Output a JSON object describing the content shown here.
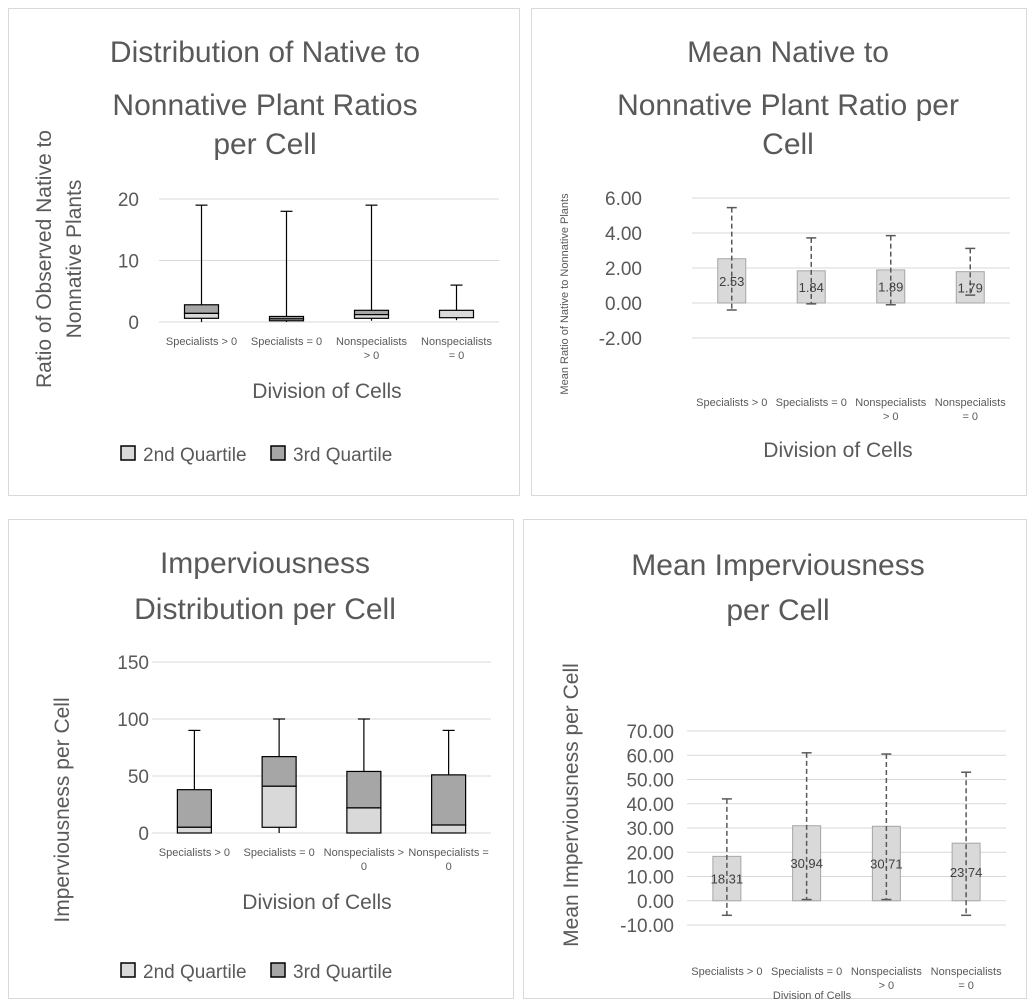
{
  "chart_data": [
    {
      "type": "box",
      "title": "Distribution of Native to Nonnative Plant Ratios per Cell",
      "title_lines": [
        "Distribution of Native to",
        "Nonnative Plant Ratios",
        "per Cell"
      ],
      "xlabel": "Division of Cells",
      "ylabel": "Ratio of Observed Native to Nonnative Plants",
      "ylabel_lines": [
        "Ratio of Observed Native to",
        "Nonnative Plants"
      ],
      "categories": [
        "Specialists > 0",
        "Specialists = 0",
        "Nonspecialists > 0",
        "Nonspecialists = 0"
      ],
      "category_lines": [
        [
          "Specialists > 0"
        ],
        [
          "Specialists = 0"
        ],
        [
          "Nonspecialists",
          "> 0"
        ],
        [
          "Nonspecialists",
          "= 0"
        ]
      ],
      "ylim": [
        0,
        20
      ],
      "yticks": [
        "0",
        "10",
        "20"
      ],
      "ytick_values": [
        0,
        10,
        20
      ],
      "boxes": [
        {
          "min": 0,
          "q1": 0.6,
          "median": 1.4,
          "q3": 2.8,
          "max": 19
        },
        {
          "min": 0,
          "q1": 0.2,
          "median": 0.5,
          "q3": 0.9,
          "max": 18
        },
        {
          "min": 0.2,
          "q1": 0.6,
          "median": 1.2,
          "q3": 1.9,
          "max": 19
        },
        {
          "min": 0.3,
          "q1": 0.7,
          "median": 1.9,
          "q3": 1.9,
          "max": 6
        }
      ],
      "legend": [
        "2nd Quartile",
        "3rd Quartile"
      ],
      "colors": {
        "second_quartile": "#d9d9d9",
        "third_quartile": "#a6a6a6"
      },
      "legend_position": "bottom",
      "grid": true
    },
    {
      "type": "bar",
      "title": "Mean Native to Nonnative Plant Ratio per Cell",
      "title_lines": [
        "Mean Native to",
        "Nonnative Plant Ratio per",
        "Cell"
      ],
      "xlabel": "Division of Cells",
      "ylabel": "Mean Ratio of Native to Nonnative Plants",
      "categories": [
        "Specialists > 0",
        "Specialists = 0",
        "Nonspecialists > 0",
        "Nonspecialists = 0"
      ],
      "category_lines": [
        [
          "Specialists > 0"
        ],
        [
          "Specialists = 0"
        ],
        [
          "Nonspecialists",
          "> 0"
        ],
        [
          "Nonspecialists",
          "= 0"
        ]
      ],
      "values": [
        2.53,
        1.84,
        1.89,
        1.79
      ],
      "value_labels": [
        "2.53",
        "1.84",
        "1.89",
        "1.79"
      ],
      "error_low": [
        -0.4,
        -0.05,
        -0.1,
        0.45
      ],
      "error_high": [
        5.45,
        3.72,
        3.85,
        3.12
      ],
      "ylim": [
        -2,
        6
      ],
      "yticks": [
        "-2.00",
        "0.00",
        "2.00",
        "4.00",
        "6.00"
      ],
      "ytick_values": [
        -2,
        0,
        2,
        4,
        6
      ],
      "bar_color": "#d9d9d9",
      "grid": true
    },
    {
      "type": "box",
      "title": "Imperviousness Distribution per Cell",
      "title_lines": [
        "Imperviousness",
        "Distribution per Cell"
      ],
      "xlabel": "Division of Cells",
      "ylabel": "Imperviousness per Cell",
      "categories": [
        "Specialists > 0",
        "Specialists = 0",
        "Nonspecialists > 0",
        "Nonspecialists = 0"
      ],
      "category_lines": [
        [
          "Specialists > 0"
        ],
        [
          "Specialists = 0"
        ],
        [
          "Nonspecialists >",
          "0"
        ],
        [
          "Nonspecialists =",
          "0"
        ]
      ],
      "ylim": [
        0,
        150
      ],
      "yticks": [
        "0",
        "50",
        "100",
        "150"
      ],
      "ytick_values": [
        0,
        50,
        100,
        150
      ],
      "boxes": [
        {
          "min": 0,
          "q1": 0,
          "median": 5,
          "q3": 38,
          "max": 90
        },
        {
          "min": 0,
          "q1": 5,
          "median": 41,
          "q3": 67,
          "max": 100
        },
        {
          "min": 0,
          "q1": 0,
          "median": 22,
          "q3": 54,
          "max": 100
        },
        {
          "min": 0,
          "q1": 0,
          "median": 7,
          "q3": 51,
          "max": 90
        }
      ],
      "legend": [
        "2nd Quartile",
        "3rd Quartile"
      ],
      "colors": {
        "second_quartile": "#d9d9d9",
        "third_quartile": "#a6a6a6"
      },
      "legend_position": "bottom",
      "grid": true
    },
    {
      "type": "bar",
      "title": "Mean Imperviousness per Cell",
      "title_lines": [
        "Mean Imperviousness",
        "per Cell"
      ],
      "xlabel": "Division of Cells",
      "ylabel": "Mean Imperviousness per Cell",
      "categories": [
        "Specialists > 0",
        "Specialists = 0",
        "Nonspecialists > 0",
        "Nonspecialists = 0"
      ],
      "category_lines": [
        [
          "Specialists > 0"
        ],
        [
          "Specialists = 0"
        ],
        [
          "Nonspecialists",
          "> 0"
        ],
        [
          "Nonspecialists",
          "= 0"
        ]
      ],
      "values": [
        18.31,
        30.94,
        30.71,
        23.74
      ],
      "value_labels": [
        "18.31",
        "30.94",
        "30.71",
        "23.74"
      ],
      "error_low": [
        -6,
        0.5,
        0.5,
        -6
      ],
      "error_high": [
        42,
        61,
        60.5,
        53
      ],
      "ylim": [
        -10,
        70
      ],
      "yticks": [
        "-10.00",
        "0.00",
        "10.00",
        "20.00",
        "30.00",
        "40.00",
        "50.00",
        "60.00",
        "70.00"
      ],
      "ytick_values": [
        -10,
        0,
        10,
        20,
        30,
        40,
        50,
        60,
        70
      ],
      "bar_color": "#d9d9d9",
      "grid": true
    }
  ]
}
